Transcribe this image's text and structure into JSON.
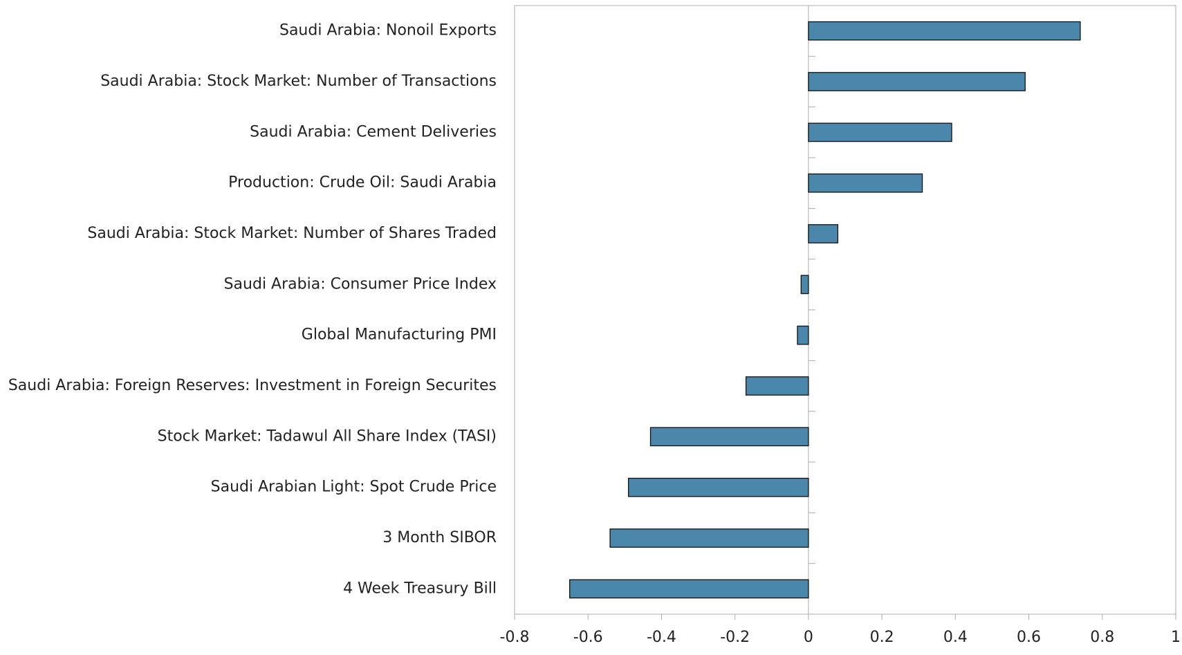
{
  "chart_data": {
    "type": "bar",
    "orientation": "horizontal",
    "categories": [
      "Saudi Arabia: Nonoil Exports",
      "Saudi Arabia: Stock Market: Number of Transactions",
      "Saudi Arabia: Cement Deliveries",
      "Production: Crude Oil: Saudi Arabia",
      "Saudi Arabia: Stock Market: Number of Shares Traded",
      "Saudi Arabia: Consumer Price Index",
      "Global Manufacturing PMI",
      "Saudi Arabia: Foreign Reserves: Investment in Foreign Securites",
      "Stock Market: Tadawul All Share Index (TASI)",
      "Saudi Arabian Light: Spot Crude Price",
      "3 Month SIBOR",
      "4 Week Treasury Bill"
    ],
    "values": [
      0.74,
      0.59,
      0.39,
      0.31,
      0.08,
      -0.02,
      -0.03,
      -0.17,
      -0.43,
      -0.49,
      -0.54,
      -0.65
    ],
    "color": "#4b87aa",
    "xlim": [
      -0.8,
      1
    ],
    "xticks": [
      -0.8,
      -0.6,
      -0.4,
      -0.2,
      0,
      0.2,
      0.4,
      0.6,
      0.8,
      1
    ],
    "grid": false
  }
}
